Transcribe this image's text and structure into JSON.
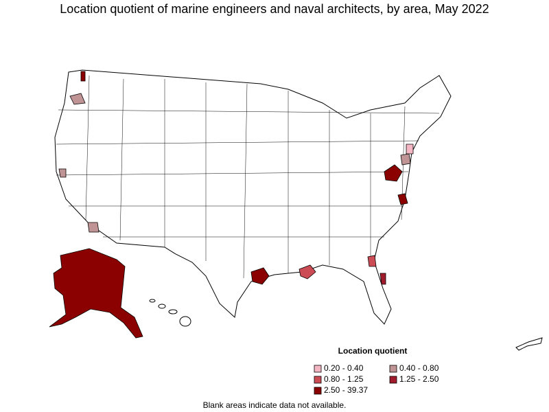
{
  "title": "Location quotient of marine engineers and naval architects, by area, May 2022",
  "legend": {
    "title": "Location quotient",
    "items": [
      {
        "label": "0.20 - 0.40",
        "color": "#f4b6c2"
      },
      {
        "label": "0.40 - 0.80",
        "color": "#c09494"
      },
      {
        "label": "0.80 - 1.25",
        "color": "#cc4c55"
      },
      {
        "label": "1.25 - 2.50",
        "color": "#a01c2c"
      },
      {
        "label": "2.50 - 39.37",
        "color": "#8b0000"
      }
    ]
  },
  "footnote": "Blank areas indicate data not available."
}
